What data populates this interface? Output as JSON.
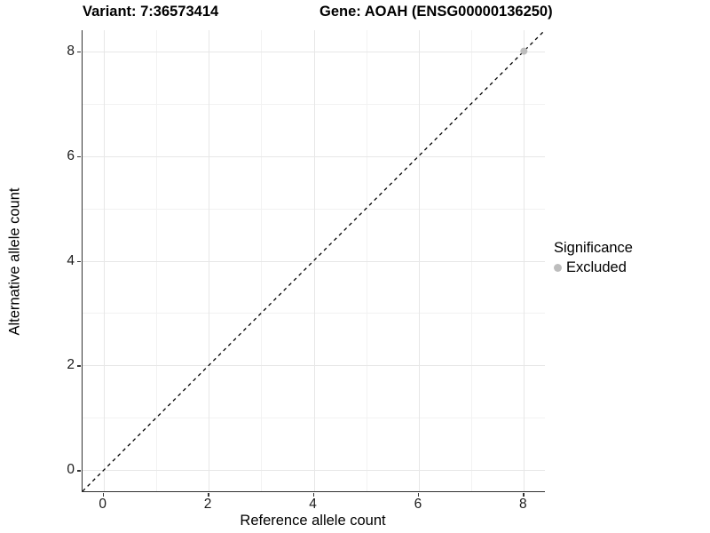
{
  "chart_data": {
    "type": "scatter",
    "titles": {
      "left": "Variant: 7:36573414",
      "right": "Gene: AOAH (ENSG00000136250)"
    },
    "xlabel": "Reference allele count",
    "ylabel": "Alternative allele count",
    "xlim": [
      -0.4,
      8.4
    ],
    "ylim": [
      -0.4,
      8.4
    ],
    "xticks": [
      0,
      2,
      4,
      6,
      8
    ],
    "yticks": [
      0,
      2,
      4,
      6,
      8
    ],
    "xticks_minor": [
      1,
      3,
      5,
      7
    ],
    "yticks_minor": [
      1,
      3,
      5,
      7
    ],
    "grid": true,
    "reference_line": {
      "type": "abline",
      "slope": 1,
      "intercept": 0,
      "style": "dashed",
      "color": "#000000"
    },
    "series": [
      {
        "name": "Excluded",
        "color": "#bdbdbd",
        "points": [
          {
            "x": 8,
            "y": 8
          }
        ]
      }
    ],
    "legend": {
      "title": "Significance",
      "position": "right",
      "entries": [
        {
          "label": "Excluded",
          "color": "#bdbdbd"
        }
      ]
    },
    "colors": {
      "grid_major": "#e7e7e7",
      "grid_minor": "#f2f2f2",
      "axis_line": "#333333"
    }
  }
}
